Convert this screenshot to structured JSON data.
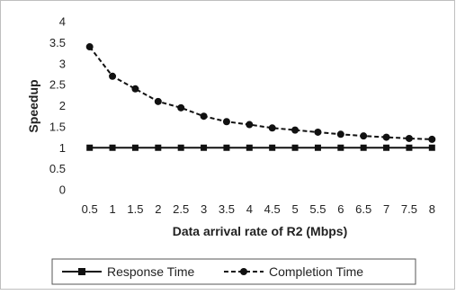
{
  "chart_data": {
    "type": "line",
    "title": "",
    "xlabel": "Data arrival rate of R2 (Mbps)",
    "ylabel": "Speedup",
    "categories": [
      "0.5",
      "1",
      "1.5",
      "2",
      "2.5",
      "3",
      "3.5",
      "4",
      "4.5",
      "5",
      "5.5",
      "6",
      "6.5",
      "7",
      "7.5",
      "8"
    ],
    "ylim": [
      0,
      4
    ],
    "yticks": [
      "0",
      "0.5",
      "1",
      "1.5",
      "2",
      "2.5",
      "3",
      "3.5",
      "4"
    ],
    "grid": false,
    "legend_position": "bottom",
    "series": [
      {
        "name": "Response Time",
        "line_style": "solid",
        "marker": "square",
        "color": "#111111",
        "values": [
          1,
          1,
          1,
          1,
          1,
          1,
          1,
          1,
          1,
          1,
          1,
          1,
          1,
          1,
          1,
          1
        ]
      },
      {
        "name": "Completion Time",
        "line_style": "dashed",
        "marker": "circle",
        "color": "#111111",
        "values": [
          3.4,
          2.7,
          2.4,
          2.1,
          1.95,
          1.75,
          1.62,
          1.55,
          1.47,
          1.42,
          1.37,
          1.32,
          1.28,
          1.25,
          1.22,
          1.2
        ]
      }
    ]
  }
}
